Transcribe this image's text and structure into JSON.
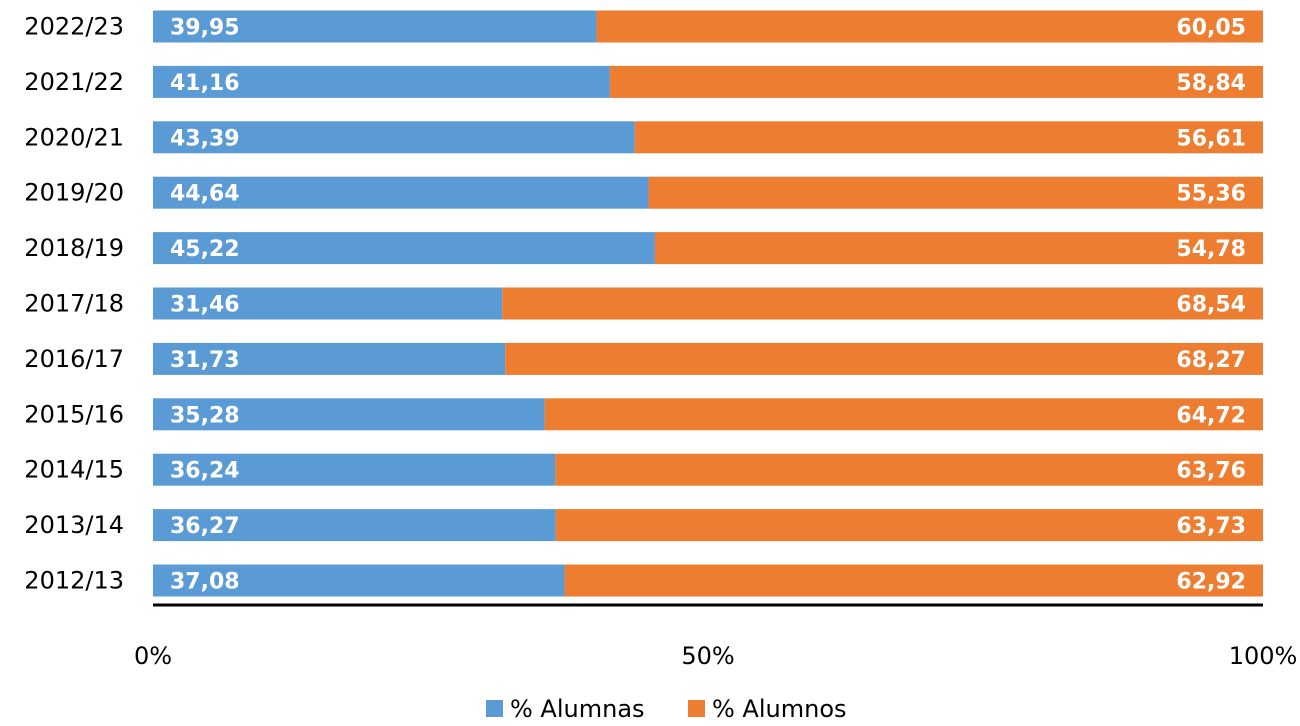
{
  "chart_data": {
    "type": "bar",
    "orientation": "horizontal",
    "stacked": "percent",
    "categories": [
      "2022/23",
      "2021/22",
      "2020/21",
      "2019/20",
      "2018/19",
      "2017/18",
      "2016/17",
      "2015/16",
      "2014/15",
      "2013/14",
      "2012/13"
    ],
    "series": [
      {
        "name": "% Alumnas",
        "color": "#5b9bd5",
        "values": [
          39.95,
          41.16,
          43.39,
          44.64,
          45.22,
          31.46,
          31.73,
          35.28,
          36.24,
          36.27,
          37.08
        ],
        "labels": [
          "39,95",
          "41,16",
          "43,39",
          "44,64",
          "45,22",
          "31,46",
          "31,73",
          "35,28",
          "36,24",
          "36,27",
          "37,08"
        ]
      },
      {
        "name": "% Alumnos",
        "color": "#ed7d31",
        "values": [
          60.05,
          58.84,
          56.61,
          55.36,
          54.78,
          68.54,
          68.27,
          64.72,
          63.76,
          63.73,
          62.92
        ],
        "labels": [
          "60,05",
          "58,84",
          "56,61",
          "55,36",
          "54,78",
          "68,54",
          "68,27",
          "64,72",
          "63,76",
          "63,73",
          "62,92"
        ]
      }
    ],
    "xlim": [
      0,
      100
    ],
    "xticks": [
      0,
      50,
      100
    ],
    "xtick_labels": [
      "0%",
      "50%",
      "100%"
    ],
    "title": "",
    "xlabel": "",
    "ylabel": "",
    "grid": false,
    "legend_position": "bottom"
  }
}
